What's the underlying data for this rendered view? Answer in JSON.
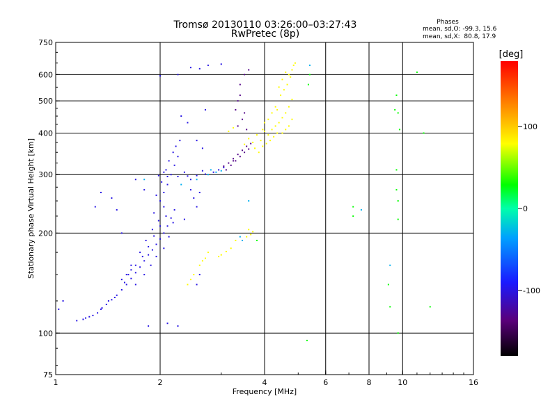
{
  "chart_data": {
    "type": "scatter",
    "title": "Tromsø 20130110 03:26:00–03:27:43",
    "subtitle": "RwPretec (8p)",
    "xlabel": "Frequency [MHz]",
    "ylabel": "Stationary phase Virtual Height [km]",
    "x_scale": "log",
    "y_scale": "log",
    "xlim": [
      1,
      16
    ],
    "ylim": [
      75,
      750
    ],
    "x_ticks": [
      {
        "value": 1,
        "label": "1"
      },
      {
        "value": 2,
        "label": "2"
      },
      {
        "value": 4,
        "label": "4"
      },
      {
        "value": 6,
        "label": "6"
      },
      {
        "value": 8,
        "label": "8"
      },
      {
        "value": 10,
        "label": "10"
      },
      {
        "value": 16,
        "label": "16"
      }
    ],
    "y_ticks": [
      {
        "value": 75,
        "label": "75"
      },
      {
        "value": 100,
        "label": "100"
      },
      {
        "value": 200,
        "label": "200"
      },
      {
        "value": 300,
        "label": "300"
      },
      {
        "value": 400,
        "label": "400"
      },
      {
        "value": 500,
        "label": "500"
      },
      {
        "value": 600,
        "label": "600"
      },
      {
        "value": 750,
        "label": "750"
      }
    ],
    "x_gridlines": [
      2,
      4,
      6,
      8,
      10
    ],
    "y_gridlines": [
      100,
      200,
      300,
      400,
      500,
      600
    ],
    "grid": true,
    "colorbar": {
      "label": "[deg]",
      "range": [
        -180,
        180
      ],
      "ticks": [
        {
          "value": 100,
          "label": "100"
        },
        {
          "value": 0,
          "label": "0"
        },
        {
          "value": -100,
          "label": "-100"
        }
      ]
    },
    "stats": {
      "heading": "Phases",
      "line_o": "mean, sd,O: -99.3, 15.6",
      "line_x": "mean, sd,X:  80.8, 17.9"
    },
    "series": [
      {
        "trace": "O-mode echoes (blue)",
        "phase": -99.3,
        "points": [
          [
            1.25,
            112
          ],
          [
            1.28,
            113
          ],
          [
            1.32,
            115
          ],
          [
            1.36,
            119
          ],
          [
            1.4,
            122
          ],
          [
            1.45,
            126
          ],
          [
            1.5,
            130
          ],
          [
            1.55,
            135
          ],
          [
            1.6,
            140
          ],
          [
            1.65,
            146
          ],
          [
            1.7,
            152
          ],
          [
            1.75,
            158
          ],
          [
            1.8,
            165
          ],
          [
            1.85,
            172
          ],
          [
            1.9,
            178
          ],
          [
            1.95,
            185
          ],
          [
            2.0,
            192
          ],
          [
            2.05,
            200
          ],
          [
            2.1,
            210
          ],
          [
            2.15,
            222
          ],
          [
            2.2,
            235
          ],
          [
            1.62,
            150
          ],
          [
            1.7,
            160
          ],
          [
            1.78,
            170
          ],
          [
            1.85,
            182
          ],
          [
            1.92,
            196
          ],
          [
            2.0,
            210
          ],
          [
            2.08,
            225
          ],
          [
            1.55,
            145
          ],
          [
            1.65,
            155
          ],
          [
            1.75,
            175
          ],
          [
            1.82,
            190
          ],
          [
            1.9,
            205
          ],
          [
            1.98,
            218
          ],
          [
            2.05,
            240
          ],
          [
            1.7,
            140
          ],
          [
            1.8,
            150
          ],
          [
            1.88,
            160
          ],
          [
            1.95,
            170
          ],
          [
            2.05,
            180
          ],
          [
            2.12,
            195
          ],
          [
            2.18,
            215
          ],
          [
            1.92,
            230
          ],
          [
            2.0,
            250
          ],
          [
            2.05,
            265
          ],
          [
            2.1,
            280
          ],
          [
            2.15,
            300
          ],
          [
            2.2,
            320
          ],
          [
            2.25,
            340
          ],
          [
            1.95,
            260
          ],
          [
            2.02,
            285
          ],
          [
            2.08,
            310
          ],
          [
            2.12,
            330
          ],
          [
            2.18,
            350
          ],
          [
            2.22,
            365
          ],
          [
            2.28,
            380
          ],
          [
            1.98,
            298
          ],
          [
            2.1,
            296
          ],
          [
            2.25,
            296
          ],
          [
            2.4,
            297
          ],
          [
            2.55,
            298
          ],
          [
            2.7,
            301
          ],
          [
            2.85,
            305
          ],
          [
            2.95,
            310
          ],
          [
            3.05,
            315
          ],
          [
            2.05,
            305
          ],
          [
            2.35,
            305
          ],
          [
            2.65,
            308
          ],
          [
            2.45,
            290
          ],
          [
            2.25,
            600
          ],
          [
            2.45,
            630
          ],
          [
            2.6,
            625
          ],
          [
            2.75,
            640
          ],
          [
            3.0,
            645
          ],
          [
            2.0,
            595
          ],
          [
            1.65,
            160
          ],
          [
            1.6,
            150
          ],
          [
            1.58,
            142
          ],
          [
            1.48,
            128
          ],
          [
            1.42,
            125
          ],
          [
            1.35,
            118
          ],
          [
            2.5,
            255
          ],
          [
            2.55,
            240
          ],
          [
            2.45,
            270
          ],
          [
            2.6,
            265
          ],
          [
            2.35,
            220
          ],
          [
            2.3,
            450
          ],
          [
            2.4,
            430
          ],
          [
            2.7,
            470
          ],
          [
            2.55,
            380
          ],
          [
            2.65,
            360
          ],
          [
            1.2,
            110
          ],
          [
            1.22,
            111
          ],
          [
            1.15,
            109
          ],
          [
            1.02,
            118
          ],
          [
            1.05,
            125
          ],
          [
            1.3,
            240
          ],
          [
            1.35,
            265
          ],
          [
            1.45,
            255
          ],
          [
            1.5,
            235
          ],
          [
            1.85,
            105
          ],
          [
            2.1,
            107
          ],
          [
            2.25,
            105
          ],
          [
            2.55,
            140
          ],
          [
            2.6,
            150
          ],
          [
            1.55,
            200
          ],
          [
            1.8,
            270
          ],
          [
            1.7,
            290
          ]
        ]
      },
      {
        "trace": "X-mode echoes (yellow-green)",
        "phase": 80.8,
        "points": [
          [
            3.5,
            370
          ],
          [
            3.6,
            385
          ],
          [
            3.7,
            375
          ],
          [
            3.8,
            395
          ],
          [
            3.9,
            380
          ],
          [
            4.0,
            405
          ],
          [
            4.1,
            395
          ],
          [
            4.2,
            410
          ],
          [
            4.3,
            420
          ],
          [
            4.4,
            430
          ],
          [
            4.5,
            445
          ],
          [
            4.6,
            460
          ],
          [
            4.7,
            480
          ],
          [
            4.8,
            505
          ],
          [
            3.75,
            360
          ],
          [
            3.85,
            350
          ],
          [
            3.95,
            365
          ],
          [
            4.05,
            372
          ],
          [
            4.15,
            380
          ],
          [
            4.25,
            390
          ],
          [
            4.35,
            400
          ],
          [
            4.45,
            520
          ],
          [
            4.55,
            540
          ],
          [
            4.65,
            560
          ],
          [
            4.75,
            590
          ],
          [
            4.8,
            620
          ],
          [
            4.85,
            640
          ],
          [
            4.7,
            600
          ],
          [
            4.5,
            580
          ],
          [
            4.6,
            610
          ],
          [
            4.4,
            550
          ],
          [
            4.3,
            480
          ],
          [
            4.2,
            460
          ],
          [
            4.1,
            440
          ],
          [
            4.0,
            430
          ],
          [
            3.95,
            410
          ],
          [
            4.5,
            400
          ],
          [
            4.6,
            410
          ],
          [
            4.7,
            420
          ],
          [
            4.8,
            440
          ],
          [
            4.35,
            470
          ],
          [
            3.6,
            205
          ],
          [
            3.65,
            198
          ],
          [
            3.7,
            202
          ],
          [
            3.55,
            195
          ],
          [
            3.3,
            190
          ],
          [
            3.2,
            180
          ],
          [
            3.1,
            176
          ],
          [
            3.0,
            172
          ],
          [
            2.95,
            170
          ],
          [
            2.7,
            168
          ],
          [
            2.75,
            175
          ],
          [
            2.6,
            160
          ],
          [
            2.65,
            165
          ],
          [
            2.4,
            140
          ],
          [
            2.45,
            145
          ],
          [
            2.5,
            150
          ],
          [
            3.15,
            405
          ],
          [
            3.25,
            415
          ],
          [
            4.9,
            650
          ]
        ]
      },
      {
        "trace": "transition (purple)",
        "phase": -130,
        "points": [
          [
            3.05,
            318
          ],
          [
            3.15,
            325
          ],
          [
            3.25,
            335
          ],
          [
            3.35,
            345
          ],
          [
            3.45,
            355
          ],
          [
            3.55,
            365
          ],
          [
            3.65,
            372
          ],
          [
            3.1,
            310
          ],
          [
            3.2,
            320
          ],
          [
            3.3,
            330
          ],
          [
            3.4,
            340
          ],
          [
            3.5,
            350
          ],
          [
            3.6,
            358
          ],
          [
            3.6,
            620
          ],
          [
            3.5,
            600
          ],
          [
            3.4,
            560
          ],
          [
            3.35,
            500
          ],
          [
            3.3,
            470
          ],
          [
            3.45,
            440
          ],
          [
            3.55,
            410
          ],
          [
            3.25,
            330
          ],
          [
            3.35,
            420
          ],
          [
            3.4,
            520
          ],
          [
            3.5,
            460
          ]
        ]
      },
      {
        "trace": "cyan/green scatter",
        "phase": -30,
        "points": [
          [
            2.8,
            310
          ],
          [
            2.9,
            305
          ],
          [
            2.75,
            300
          ],
          [
            3.0,
            308
          ],
          [
            3.6,
            250
          ],
          [
            3.4,
            195
          ],
          [
            3.45,
            190
          ],
          [
            2.55,
            290
          ],
          [
            2.3,
            280
          ],
          [
            5.4,
            640
          ],
          [
            1.8,
            290
          ],
          [
            7.6,
            235
          ],
          [
            9.2,
            160
          ]
        ]
      },
      {
        "trace": "sparse high-frequency points",
        "phase": 30,
        "points": [
          [
            9.6,
            520
          ],
          [
            9.5,
            470
          ],
          [
            9.7,
            460
          ],
          [
            9.8,
            410
          ],
          [
            9.6,
            310
          ],
          [
            9.6,
            270
          ],
          [
            9.7,
            250
          ],
          [
            9.7,
            220
          ],
          [
            7.2,
            240
          ],
          [
            7.2,
            225
          ],
          [
            9.1,
            140
          ],
          [
            9.2,
            120
          ],
          [
            9.7,
            100
          ],
          [
            11.0,
            610
          ],
          [
            11.5,
            400
          ],
          [
            12.0,
            120
          ],
          [
            5.4,
            600
          ],
          [
            5.35,
            560
          ],
          [
            5.3,
            95
          ],
          [
            3.8,
            190
          ]
        ]
      }
    ]
  }
}
